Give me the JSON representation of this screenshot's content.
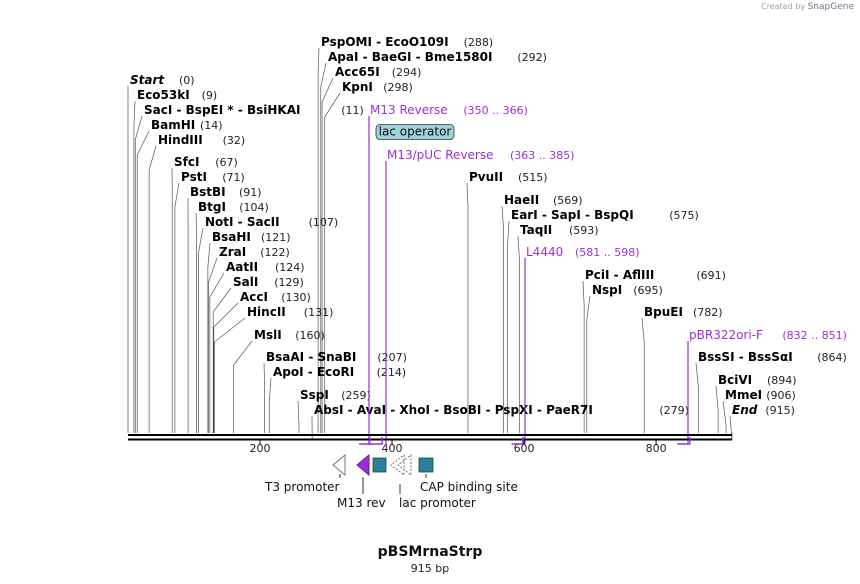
{
  "app": {
    "credit_prefix": "Created by",
    "credit_brand": "SnapGene"
  },
  "plasmid": {
    "name": "pBSMrnaStrp",
    "length_label": "915 bp",
    "length": 915
  },
  "colors": {
    "enzyme": "#000000",
    "primer": "#9b30d9",
    "feature_fill": "#2a7f97",
    "operator_fill": "#9fd3dc"
  },
  "sites": [
    {
      "label": "Start",
      "pos": 0,
      "italic": true
    },
    {
      "label": "Eco53kI",
      "pos": 9
    },
    {
      "label": "SacI - BspEI * - BsiHKAI",
      "pos": 11
    },
    {
      "label": "BamHI",
      "pos": 14
    },
    {
      "label": "HindIII",
      "pos": 32
    },
    {
      "label": "SfcI",
      "pos": 67
    },
    {
      "label": "PstI",
      "pos": 71
    },
    {
      "label": "BstBI",
      "pos": 91
    },
    {
      "label": "BtgI",
      "pos": 104
    },
    {
      "label": "NotI - SacII",
      "pos": 107
    },
    {
      "label": "BsaHI",
      "pos": 121
    },
    {
      "label": "ZraI",
      "pos": 122
    },
    {
      "label": "AatII",
      "pos": 124
    },
    {
      "label": "SalI",
      "pos": 129
    },
    {
      "label": "AccI",
      "pos": 130
    },
    {
      "label": "HincII",
      "pos": 131
    },
    {
      "label": "MslI",
      "pos": 160
    },
    {
      "label": "BsaAI - SnaBI",
      "pos": 207
    },
    {
      "label": "ApoI - EcoRI",
      "pos": 214
    },
    {
      "label": "SspI",
      "pos": 259
    },
    {
      "label": "AbsI - AvaI - XhoI - BsoBI - PspXI - PaeR7I",
      "pos": 279
    },
    {
      "label": "PspOMI - EcoO109I",
      "pos": 288
    },
    {
      "label": "ApaI - BaeGI - Bme1580I",
      "pos": 292
    },
    {
      "label": "Acc65I",
      "pos": 294
    },
    {
      "label": "KpnI",
      "pos": 298
    },
    {
      "label": "PvuII",
      "pos": 515
    },
    {
      "label": "HaeII",
      "pos": 569
    },
    {
      "label": "EarI - SapI - BspQI",
      "pos": 575
    },
    {
      "label": "TaqII",
      "pos": 593
    },
    {
      "label": "PciI - AflIII",
      "pos": 691
    },
    {
      "label": "NspI",
      "pos": 695
    },
    {
      "label": "BpuEI",
      "pos": 782
    },
    {
      "label": "BssSI - BssSαI",
      "pos": 864
    },
    {
      "label": "BciVI",
      "pos": 894
    },
    {
      "label": "MmeI",
      "pos": 906
    },
    {
      "label": "End",
      "pos": 915,
      "italic": true
    }
  ],
  "primers": [
    {
      "label": "M13 Reverse",
      "range": "350 .. 366",
      "start": 350,
      "end": 366
    },
    {
      "label": "M13/pUC Reverse",
      "range": "363 .. 385",
      "start": 363,
      "end": 385
    },
    {
      "label": "L4440",
      "range": "581 .. 598",
      "start": 581,
      "end": 598
    },
    {
      "label": "pBR322ori-F",
      "range": "832 .. 851",
      "start": 832,
      "end": 851
    }
  ],
  "operator_label": "lac operator",
  "ruler_ticks": [
    200,
    400,
    600,
    800
  ],
  "features": [
    {
      "label": "T3 promoter"
    },
    {
      "label": "M13 rev"
    },
    {
      "label": "lac promoter"
    },
    {
      "label": "CAP binding site"
    }
  ]
}
